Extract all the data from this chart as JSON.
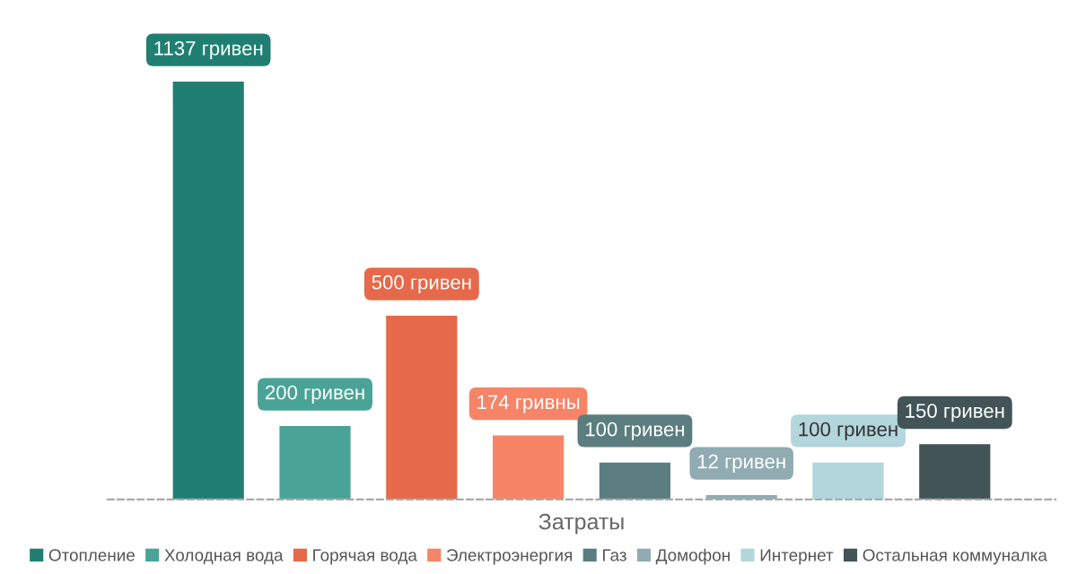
{
  "chart_data": {
    "type": "bar",
    "xlabel": "Затраты",
    "categories": [
      null
    ],
    "ylim": [
      0,
      1250
    ],
    "legend": "bottom",
    "grid": false,
    "series": [
      {
        "name": "Отопление",
        "color": "#207f72",
        "values": [
          1137
        ],
        "value_labels": [
          "1137 гривен"
        ]
      },
      {
        "name": "Холодная вода",
        "color": "#4aa397",
        "values": [
          200
        ],
        "value_labels": [
          "200 гривен"
        ]
      },
      {
        "name": "Горячая вода",
        "color": "#e5694a",
        "values": [
          500
        ],
        "value_labels": [
          "500 гривен"
        ]
      },
      {
        "name": "Электроэнергия",
        "color": "#f78467",
        "values": [
          174
        ],
        "value_labels": [
          "174 гривны"
        ]
      },
      {
        "name": "Газ",
        "color": "#5c7d80",
        "values": [
          100
        ],
        "value_labels": [
          "100 гривен"
        ]
      },
      {
        "name": "Домофон",
        "color": "#90abb1",
        "values": [
          12
        ],
        "value_labels": [
          "12 гривен"
        ]
      },
      {
        "name": "Интернет",
        "color": "#b2d6dc",
        "values": [
          100
        ],
        "value_labels": [
          "100 гривен"
        ]
      },
      {
        "name": "Остальная коммуналка",
        "color": "#435457",
        "values": [
          150
        ],
        "value_labels": [
          "150 гривен"
        ]
      }
    ]
  }
}
